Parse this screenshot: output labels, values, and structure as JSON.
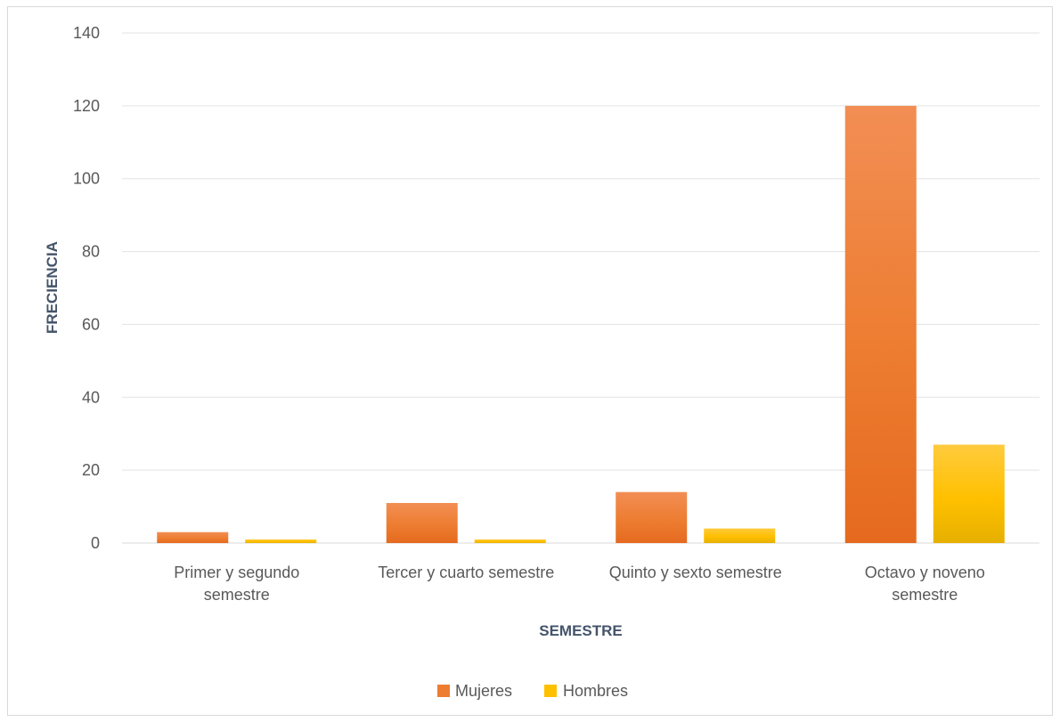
{
  "chart_data": {
    "type": "bar",
    "categories": [
      [
        "Primer y segundo",
        "semestre"
      ],
      [
        "Tercer y cuarto semestre"
      ],
      [
        "Quinto y sexto semestre"
      ],
      [
        "Octavo y noveno",
        "semestre"
      ]
    ],
    "series": [
      {
        "name": "Mujeres",
        "values": [
          3,
          11,
          14,
          120
        ],
        "color": "#ed7d31",
        "gradient": [
          "#f28e54",
          "#ed7d31",
          "#e56a1f"
        ]
      },
      {
        "name": "Hombres",
        "values": [
          1,
          1,
          4,
          27
        ],
        "color": "#ffc000",
        "gradient": [
          "#ffcb3d",
          "#ffc000",
          "#e6b000"
        ]
      }
    ],
    "xlabel": "SEMESTRE",
    "ylabel": "FRECIENCIA",
    "ylim": [
      0,
      140
    ],
    "yticks": [
      0,
      20,
      40,
      60,
      80,
      100,
      120,
      140
    ],
    "grid": true,
    "legend": "bottom"
  }
}
